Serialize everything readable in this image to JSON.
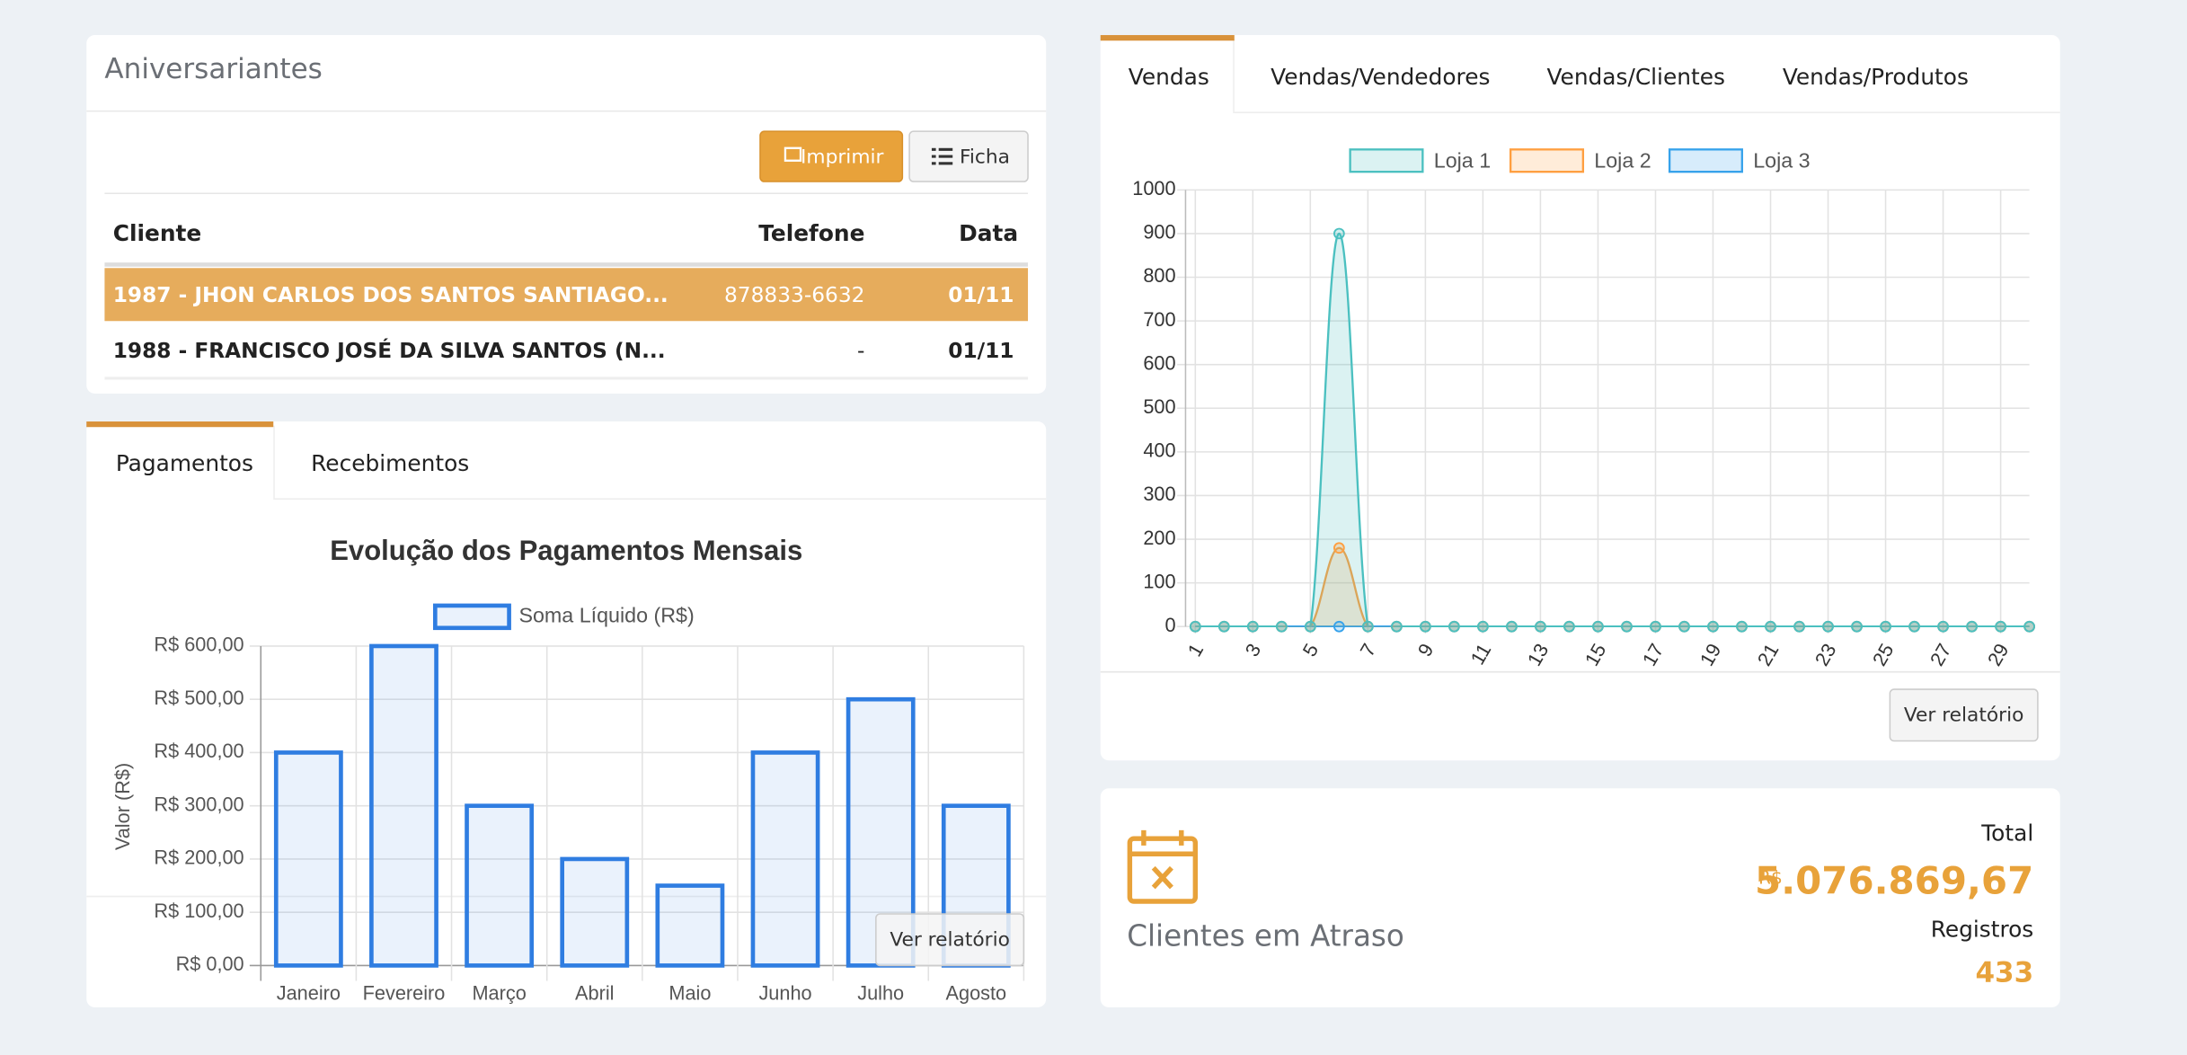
{
  "birthdays": {
    "title": "Aniversariantes",
    "buttons": [
      "Imprimir",
      "Ficha"
    ],
    "columns": [
      "Cliente",
      "Telefone",
      "Data"
    ],
    "rows": [
      [
        "1987 - JHON CARLOS DOS SANTOS SANTIAGO...",
        "878833-6632",
        "01/11"
      ],
      [
        "1988 - FRANCISCO JOSÉ DA SILVA SANTOS (N...",
        "-",
        "01/11"
      ]
    ]
  },
  "payments": {
    "tabs": [
      "Pagamentos",
      "Recebimentos"
    ],
    "button": "Ver relatório"
  },
  "sales": {
    "tabs": [
      "Vendas",
      "Vendas/Vendedores",
      "Vendas/Clientes",
      "Vendas/Produtos"
    ],
    "button": "Ver relatório"
  },
  "overdue": {
    "label": "Clientes em Atraso",
    "total_label": "Total",
    "currency": "R$",
    "total": "5.076.869,67",
    "records_label": "Registros",
    "records": "433"
  },
  "chart_data": [
    {
      "type": "bar",
      "title": "Evolução dos Pagamentos Mensais",
      "y_label": "Valor (R$)",
      "categories": [
        "Janeiro",
        "Fevereiro",
        "Março",
        "Abril",
        "Maio",
        "Junho",
        "Julho",
        "Agosto"
      ],
      "series": [
        {
          "name": "Soma Líquido (R$)",
          "color": "#2f7de1",
          "values": [
            400,
            600,
            300,
            200,
            150,
            400,
            500,
            300
          ]
        }
      ],
      "ylim": [
        0,
        600
      ],
      "yticks": [
        {
          "value": 0,
          "label": "R$ 0,00"
        },
        {
          "value": 100,
          "label": "R$ 100,00"
        },
        {
          "value": 200,
          "label": "R$ 200,00"
        },
        {
          "value": 300,
          "label": "R$ 300,00"
        },
        {
          "value": 400,
          "label": "R$ 400,00"
        },
        {
          "value": 500,
          "label": "R$ 500,00"
        },
        {
          "value": 600,
          "label": "R$ 600,00"
        }
      ],
      "grid": true
    },
    {
      "type": "line",
      "x": [
        1,
        2,
        3,
        4,
        5,
        6,
        7,
        8,
        9,
        10,
        11,
        12,
        13,
        14,
        15,
        16,
        17,
        18,
        19,
        20,
        21,
        22,
        23,
        24,
        25,
        26,
        27,
        28,
        29,
        30
      ],
      "xlim": [
        1,
        30
      ],
      "xticks": [
        1,
        3,
        5,
        7,
        9,
        11,
        13,
        15,
        17,
        19,
        21,
        23,
        25,
        27,
        29
      ],
      "ylim": [
        0,
        1000
      ],
      "yticks": [
        0,
        100,
        200,
        300,
        400,
        500,
        600,
        700,
        800,
        900,
        1000
      ],
      "grid": true,
      "series": [
        {
          "name": "Loja 1",
          "color": "#4bc0c0",
          "values": [
            0,
            0,
            0,
            0,
            0,
            900,
            0,
            0,
            0,
            0,
            0,
            0,
            0,
            0,
            0,
            0,
            0,
            0,
            0,
            0,
            0,
            0,
            0,
            0,
            0,
            0,
            0,
            0,
            0,
            0
          ]
        },
        {
          "name": "Loja 2",
          "color": "#ff9f40",
          "values": [
            0,
            0,
            0,
            0,
            0,
            180,
            0,
            0,
            0,
            0,
            0,
            0,
            0,
            0,
            0,
            0,
            0,
            0,
            0,
            0,
            0,
            0,
            0,
            0,
            0,
            0,
            0,
            0,
            0,
            0
          ]
        },
        {
          "name": "Loja 3",
          "color": "#36a2eb",
          "values": [
            0,
            0,
            0,
            0,
            0,
            0,
            0,
            0,
            0,
            0,
            0,
            0,
            0,
            0,
            0,
            0,
            0,
            0,
            0,
            0,
            0,
            0,
            0,
            0,
            0,
            0,
            0,
            0,
            0,
            0
          ]
        }
      ]
    }
  ]
}
